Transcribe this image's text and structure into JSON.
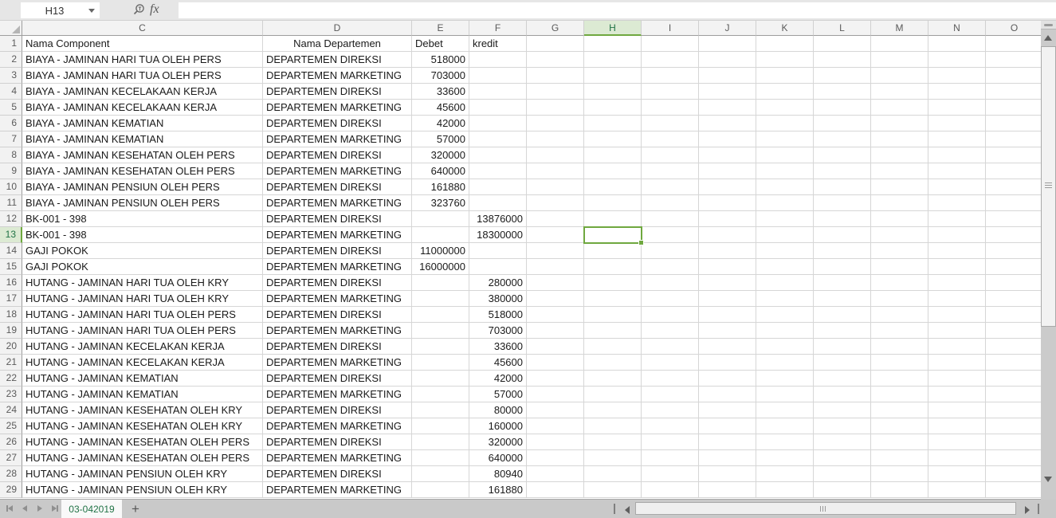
{
  "app": {
    "name_box_value": "H13",
    "formula_bar_value": "",
    "fx_label": "fx"
  },
  "colors": {
    "selection_green": "#6fa83f",
    "selected_header_bg": "#dcead3",
    "selected_header_text": "#217346",
    "tab_text_green": "#217346",
    "gridline": "#d6d6d6",
    "header_bg": "#f3f3f3",
    "bar_bg": "#e6e6e6",
    "tabbar_bg": "#c9c9c9"
  },
  "grid": {
    "column_letters": [
      "C",
      "D",
      "E",
      "F",
      "G",
      "H",
      "I",
      "J",
      "K",
      "L",
      "M",
      "N",
      "O"
    ],
    "selection": {
      "ref": "H13",
      "column": "H",
      "row": 13
    },
    "header_row": {
      "row_num": "1",
      "c": "Nama Component",
      "d": "Nama Departemen",
      "e": "Debet",
      "f": "kredit"
    },
    "rows": [
      {
        "c": "BIAYA - JAMINAN HARI TUA OLEH PERS",
        "d": "DEPARTEMEN DIREKSI",
        "debet": "518000",
        "kredit": ""
      },
      {
        "c": "BIAYA - JAMINAN HARI TUA OLEH PERS",
        "d": "DEPARTEMEN MARKETING",
        "debet": "703000",
        "kredit": ""
      },
      {
        "c": "BIAYA - JAMINAN KECELAKAAN KERJA",
        "d": "DEPARTEMEN DIREKSI",
        "debet": "33600",
        "kredit": ""
      },
      {
        "c": "BIAYA - JAMINAN KECELAKAAN KERJA",
        "d": "DEPARTEMEN MARKETING",
        "debet": "45600",
        "kredit": ""
      },
      {
        "c": "BIAYA - JAMINAN KEMATIAN",
        "d": "DEPARTEMEN DIREKSI",
        "debet": "42000",
        "kredit": ""
      },
      {
        "c": "BIAYA - JAMINAN KEMATIAN",
        "d": "DEPARTEMEN MARKETING",
        "debet": "57000",
        "kredit": ""
      },
      {
        "c": "BIAYA - JAMINAN KESEHATAN OLEH PERS",
        "d": "DEPARTEMEN DIREKSI",
        "debet": "320000",
        "kredit": ""
      },
      {
        "c": "BIAYA - JAMINAN KESEHATAN OLEH PERS",
        "d": "DEPARTEMEN MARKETING",
        "debet": "640000",
        "kredit": ""
      },
      {
        "c": "BIAYA - JAMINAN PENSIUN OLEH PERS",
        "d": "DEPARTEMEN DIREKSI",
        "debet": "161880",
        "kredit": ""
      },
      {
        "c": "BIAYA - JAMINAN PENSIUN OLEH PERS",
        "d": "DEPARTEMEN MARKETING",
        "debet": "323760",
        "kredit": ""
      },
      {
        "c": "BK-001 - 398",
        "d": "DEPARTEMEN DIREKSI",
        "debet": "",
        "kredit": "13876000"
      },
      {
        "c": "BK-001 - 398",
        "d": "DEPARTEMEN MARKETING",
        "debet": "",
        "kredit": "18300000"
      },
      {
        "c": "GAJI POKOK",
        "d": "DEPARTEMEN DIREKSI",
        "debet": "11000000",
        "kredit": ""
      },
      {
        "c": "GAJI POKOK",
        "d": "DEPARTEMEN MARKETING",
        "debet": "16000000",
        "kredit": ""
      },
      {
        "c": "HUTANG - JAMINAN HARI TUA OLEH KRY",
        "d": "DEPARTEMEN DIREKSI",
        "debet": "",
        "kredit": "280000"
      },
      {
        "c": "HUTANG - JAMINAN HARI TUA OLEH KRY",
        "d": "DEPARTEMEN MARKETING",
        "debet": "",
        "kredit": "380000"
      },
      {
        "c": "HUTANG - JAMINAN HARI TUA OLEH PERS",
        "d": "DEPARTEMEN DIREKSI",
        "debet": "",
        "kredit": "518000"
      },
      {
        "c": "HUTANG - JAMINAN HARI TUA OLEH PERS",
        "d": "DEPARTEMEN MARKETING",
        "debet": "",
        "kredit": "703000"
      },
      {
        "c": "HUTANG - JAMINAN KECELAKAN KERJA",
        "d": "DEPARTEMEN DIREKSI",
        "debet": "",
        "kredit": "33600"
      },
      {
        "c": "HUTANG - JAMINAN KECELAKAN KERJA",
        "d": "DEPARTEMEN MARKETING",
        "debet": "",
        "kredit": "45600"
      },
      {
        "c": "HUTANG - JAMINAN KEMATIAN",
        "d": "DEPARTEMEN DIREKSI",
        "debet": "",
        "kredit": "42000"
      },
      {
        "c": "HUTANG - JAMINAN KEMATIAN",
        "d": "DEPARTEMEN MARKETING",
        "debet": "",
        "kredit": "57000"
      },
      {
        "c": "HUTANG - JAMINAN KESEHATAN OLEH KRY",
        "d": "DEPARTEMEN DIREKSI",
        "debet": "",
        "kredit": "80000"
      },
      {
        "c": "HUTANG - JAMINAN KESEHATAN OLEH KRY",
        "d": "DEPARTEMEN MARKETING",
        "debet": "",
        "kredit": "160000"
      },
      {
        "c": "HUTANG - JAMINAN KESEHATAN OLEH PERS",
        "d": "DEPARTEMEN DIREKSI",
        "debet": "",
        "kredit": "320000"
      },
      {
        "c": "HUTANG - JAMINAN KESEHATAN OLEH PERS",
        "d": "DEPARTEMEN MARKETING",
        "debet": "",
        "kredit": "640000"
      },
      {
        "c": "HUTANG - JAMINAN PENSIUN OLEH KRY",
        "d": "DEPARTEMEN DIREKSI",
        "debet": "",
        "kredit": "80940"
      },
      {
        "c": "HUTANG - JAMINAN PENSIUN OLEH KRY",
        "d": "DEPARTEMEN MARKETING",
        "debet": "",
        "kredit": "161880"
      }
    ]
  },
  "sheet_bar": {
    "active_tab": "03-042019",
    "add_sheet_label": "+"
  }
}
